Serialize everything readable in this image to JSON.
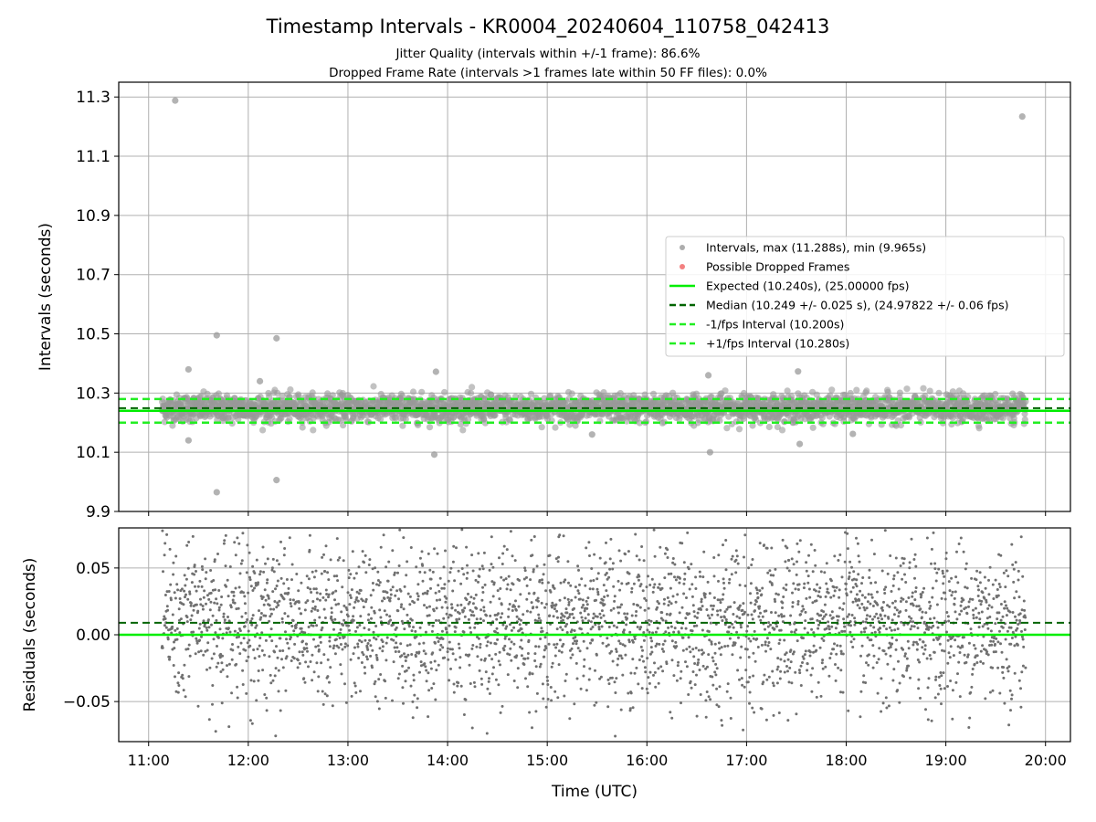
{
  "chart_data": [
    {
      "type": "scatter",
      "title": "Timestamp Intervals - KR0004_20240604_110758_042413",
      "subtitle_1": "Jitter Quality (intervals within +/-1 frame): 86.6%",
      "subtitle_2": "Dropped Frame Rate (intervals >1 frames late within 50 FF files): 0.0%",
      "ylabel": "Intervals (seconds)",
      "ylim": [
        9.9,
        11.35
      ],
      "yticks": [
        "9.9",
        "10.1",
        "10.3",
        "10.5",
        "10.7",
        "10.9",
        "11.1",
        "11.3"
      ],
      "ytick_values": [
        9.9,
        10.1,
        10.3,
        10.5,
        10.7,
        10.9,
        11.1,
        11.3
      ],
      "grid": true,
      "legend_position": "center-right",
      "legend": [
        {
          "label": "Intervals, max (11.288s), min (9.965s)",
          "kind": "marker",
          "color": "#999999"
        },
        {
          "label": "Possible Dropped Frames",
          "kind": "marker",
          "color": "#f06060"
        },
        {
          "label": "Expected (10.240s), (25.00000 fps)",
          "kind": "line",
          "color": "#00ee00",
          "dash": false
        },
        {
          "label": "Median (10.249 +/- 0.025 s), (24.97822 +/- 0.06 fps)",
          "kind": "line",
          "color": "#006400",
          "dash": true
        },
        {
          "label": "-1/fps Interval (10.200s)",
          "kind": "line",
          "color": "#22ee22",
          "dash": true
        },
        {
          "label": "+1/fps Interval (10.280s)",
          "kind": "line",
          "color": "#22ee22",
          "dash": true
        }
      ],
      "reference_lines": {
        "expected": 10.24,
        "median": 10.249,
        "minus_1fps": 10.2,
        "plus_1fps": 10.28
      },
      "series": [
        {
          "name": "Intervals, max (11.288s), min (9.965s)",
          "count": 3000,
          "x_range": [
            "11:08",
            "19:48"
          ],
          "center": 10.249,
          "spread": 0.025
        },
        {
          "name": "Possible Dropped Frames",
          "count": 0
        }
      ],
      "outliers": [
        {
          "x": "11:16",
          "y": 11.288
        },
        {
          "x": "19:46",
          "y": 11.234
        },
        {
          "x": "11:41",
          "y": 10.495
        },
        {
          "x": "12:17",
          "y": 10.485
        },
        {
          "x": "11:24",
          "y": 10.38
        },
        {
          "x": "13:53",
          "y": 10.372
        },
        {
          "x": "17:31",
          "y": 10.373
        },
        {
          "x": "16:37",
          "y": 10.36
        },
        {
          "x": "12:07",
          "y": 10.34
        },
        {
          "x": "11:24",
          "y": 10.14
        },
        {
          "x": "17:32",
          "y": 10.128
        },
        {
          "x": "15:27",
          "y": 10.16
        },
        {
          "x": "18:04",
          "y": 10.162
        },
        {
          "x": "16:38",
          "y": 10.1
        },
        {
          "x": "13:52",
          "y": 10.092
        },
        {
          "x": "12:17",
          "y": 10.006
        },
        {
          "x": "11:41",
          "y": 9.965
        }
      ]
    },
    {
      "type": "scatter",
      "ylabel": "Residuals (seconds)",
      "xlabel": "Time (UTC)",
      "ylim": [
        -0.08,
        0.08
      ],
      "yticks": [
        "−0.05",
        "0.00",
        "0.05"
      ],
      "ytick_values": [
        -0.05,
        0.0,
        0.05
      ],
      "x_start": "11:00",
      "x_end": "20:00",
      "xlim": [
        "10:42",
        "20:15"
      ],
      "xticks": [
        "11:00",
        "12:00",
        "13:00",
        "14:00",
        "15:00",
        "16:00",
        "17:00",
        "18:00",
        "19:00",
        "20:00"
      ],
      "grid": true,
      "reference_lines": {
        "zero": 0.0,
        "median_offset": 0.009
      },
      "series": [
        {
          "name": "Residuals",
          "count": 3000,
          "color": "#707070",
          "spread": 0.03
        }
      ]
    }
  ],
  "colors": {
    "points": "#9a9a9a",
    "residual_points": "#6e6e6e",
    "expected": "#00ee00",
    "median": "#006400",
    "fps_bounds": "#22ee22",
    "grid": "#b0b0b0"
  }
}
